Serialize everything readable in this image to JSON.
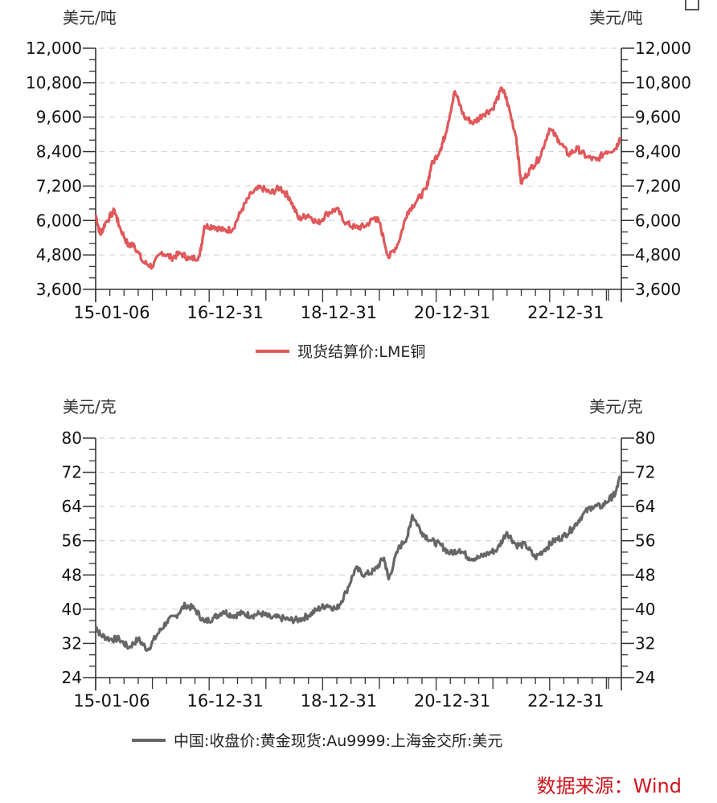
{
  "corner_icon": "restore-window-icon",
  "source": {
    "text": "数据来源：Wind",
    "color": "#d0151c"
  },
  "chart_data": [
    {
      "type": "line",
      "title": "",
      "left_unit": "美元/吨",
      "right_unit": "美元/吨",
      "legend": [
        {
          "name": "现货结算价:LME铜",
          "color": "#e0585a"
        }
      ],
      "xlabel": "",
      "ylabel": "美元/吨",
      "ylim": [
        3600,
        12000
      ],
      "yticks": [
        "12,000",
        "10,800",
        "9,600",
        "8,400",
        "7,200",
        "6,000",
        "4,800",
        "3,600"
      ],
      "xticks": [
        "15-01-06",
        "16-12-31",
        "18-12-31",
        "20-12-31",
        "22-12-31"
      ],
      "grid": true,
      "legend_position": "bottom",
      "series": [
        {
          "name": "现货结算价:LME铜",
          "color": "#e0585a",
          "x": [
            "2015-01",
            "2015-02",
            "2015-03",
            "2015-05",
            "2015-06",
            "2015-08",
            "2015-09",
            "2015-11",
            "2016-01",
            "2016-03",
            "2016-05",
            "2016-07",
            "2016-09",
            "2016-11",
            "2016-12",
            "2017-02",
            "2017-04",
            "2017-06",
            "2017-08",
            "2017-10",
            "2017-12",
            "2018-02",
            "2018-04",
            "2018-06",
            "2018-08",
            "2018-10",
            "2018-12",
            "2019-02",
            "2019-04",
            "2019-06",
            "2019-08",
            "2019-10",
            "2019-12",
            "2020-01",
            "2020-03",
            "2020-05",
            "2020-07",
            "2020-09",
            "2020-11",
            "2020-12",
            "2021-02",
            "2021-03",
            "2021-05",
            "2021-07",
            "2021-09",
            "2021-11",
            "2022-01",
            "2022-03",
            "2022-04",
            "2022-06",
            "2022-07",
            "2022-09",
            "2022-11",
            "2023-01",
            "2023-03",
            "2023-05",
            "2023-07",
            "2023-09",
            "2023-11",
            "2024-01",
            "2024-03",
            "2024-04"
          ],
          "values": [
            6200,
            5500,
            5900,
            6350,
            5800,
            5100,
            5200,
            4550,
            4400,
            4900,
            4700,
            4850,
            4650,
            4750,
            5800,
            5800,
            5650,
            5700,
            6400,
            6950,
            7150,
            6950,
            7150,
            6800,
            6050,
            6200,
            5900,
            6250,
            6400,
            5900,
            5750,
            5800,
            6100,
            5950,
            4700,
            5200,
            6300,
            6700,
            7100,
            7900,
            8500,
            9000,
            10500,
            9600,
            9400,
            9700,
            9900,
            10600,
            10200,
            8900,
            7300,
            7800,
            8200,
            9200,
            8800,
            8300,
            8500,
            8200,
            8100,
            8400,
            8500,
            8900
          ]
        }
      ]
    },
    {
      "type": "line",
      "title": "",
      "left_unit": "美元/克",
      "right_unit": "美元/克",
      "legend": [
        {
          "name": "中国:收盘价:黄金现货:Au9999:上海金交所:美元",
          "color": "#666666"
        }
      ],
      "xlabel": "",
      "ylabel": "美元/克",
      "ylim": [
        24,
        80
      ],
      "yticks": [
        "80",
        "72",
        "64",
        "56",
        "48",
        "40",
        "32",
        "24"
      ],
      "xticks": [
        "15-01-06",
        "16-12-31",
        "18-12-31",
        "20-12-31",
        "22-12-31"
      ],
      "grid": true,
      "legend_position": "bottom",
      "series": [
        {
          "name": "中国:收盘价:黄金现货:Au9999:上海金交所:美元",
          "color": "#666666",
          "x": [
            "2015-01",
            "2015-02",
            "2015-04",
            "2015-06",
            "2015-08",
            "2015-10",
            "2015-12",
            "2016-02",
            "2016-04",
            "2016-06",
            "2016-08",
            "2016-10",
            "2016-12",
            "2017-02",
            "2017-04",
            "2017-06",
            "2017-08",
            "2017-10",
            "2017-12",
            "2018-02",
            "2018-04",
            "2018-06",
            "2018-08",
            "2018-10",
            "2018-12",
            "2019-02",
            "2019-04",
            "2019-06",
            "2019-08",
            "2019-10",
            "2019-12",
            "2020-02",
            "2020-03",
            "2020-05",
            "2020-07",
            "2020-08",
            "2020-10",
            "2020-12",
            "2021-02",
            "2021-04",
            "2021-06",
            "2021-08",
            "2021-10",
            "2021-12",
            "2022-02",
            "2022-04",
            "2022-06",
            "2022-08",
            "2022-10",
            "2022-12",
            "2023-02",
            "2023-04",
            "2023-06",
            "2023-08",
            "2023-10",
            "2023-12",
            "2024-02",
            "2024-03",
            "2024-04"
          ],
          "values": [
            36,
            34,
            33,
            33,
            31,
            33,
            30.5,
            34,
            37,
            38.5,
            41,
            40,
            37,
            38,
            39.5,
            38.5,
            39,
            38.5,
            39,
            38,
            38,
            37.5,
            37.5,
            38.5,
            40,
            41,
            40,
            44,
            49.5,
            48,
            49,
            52,
            47,
            54,
            57,
            62,
            58,
            56,
            55,
            53,
            54,
            52,
            52,
            53,
            54,
            58,
            55,
            55,
            52,
            54,
            56,
            57,
            59,
            62,
            64,
            64,
            66,
            67,
            71
          ]
        }
      ]
    }
  ]
}
